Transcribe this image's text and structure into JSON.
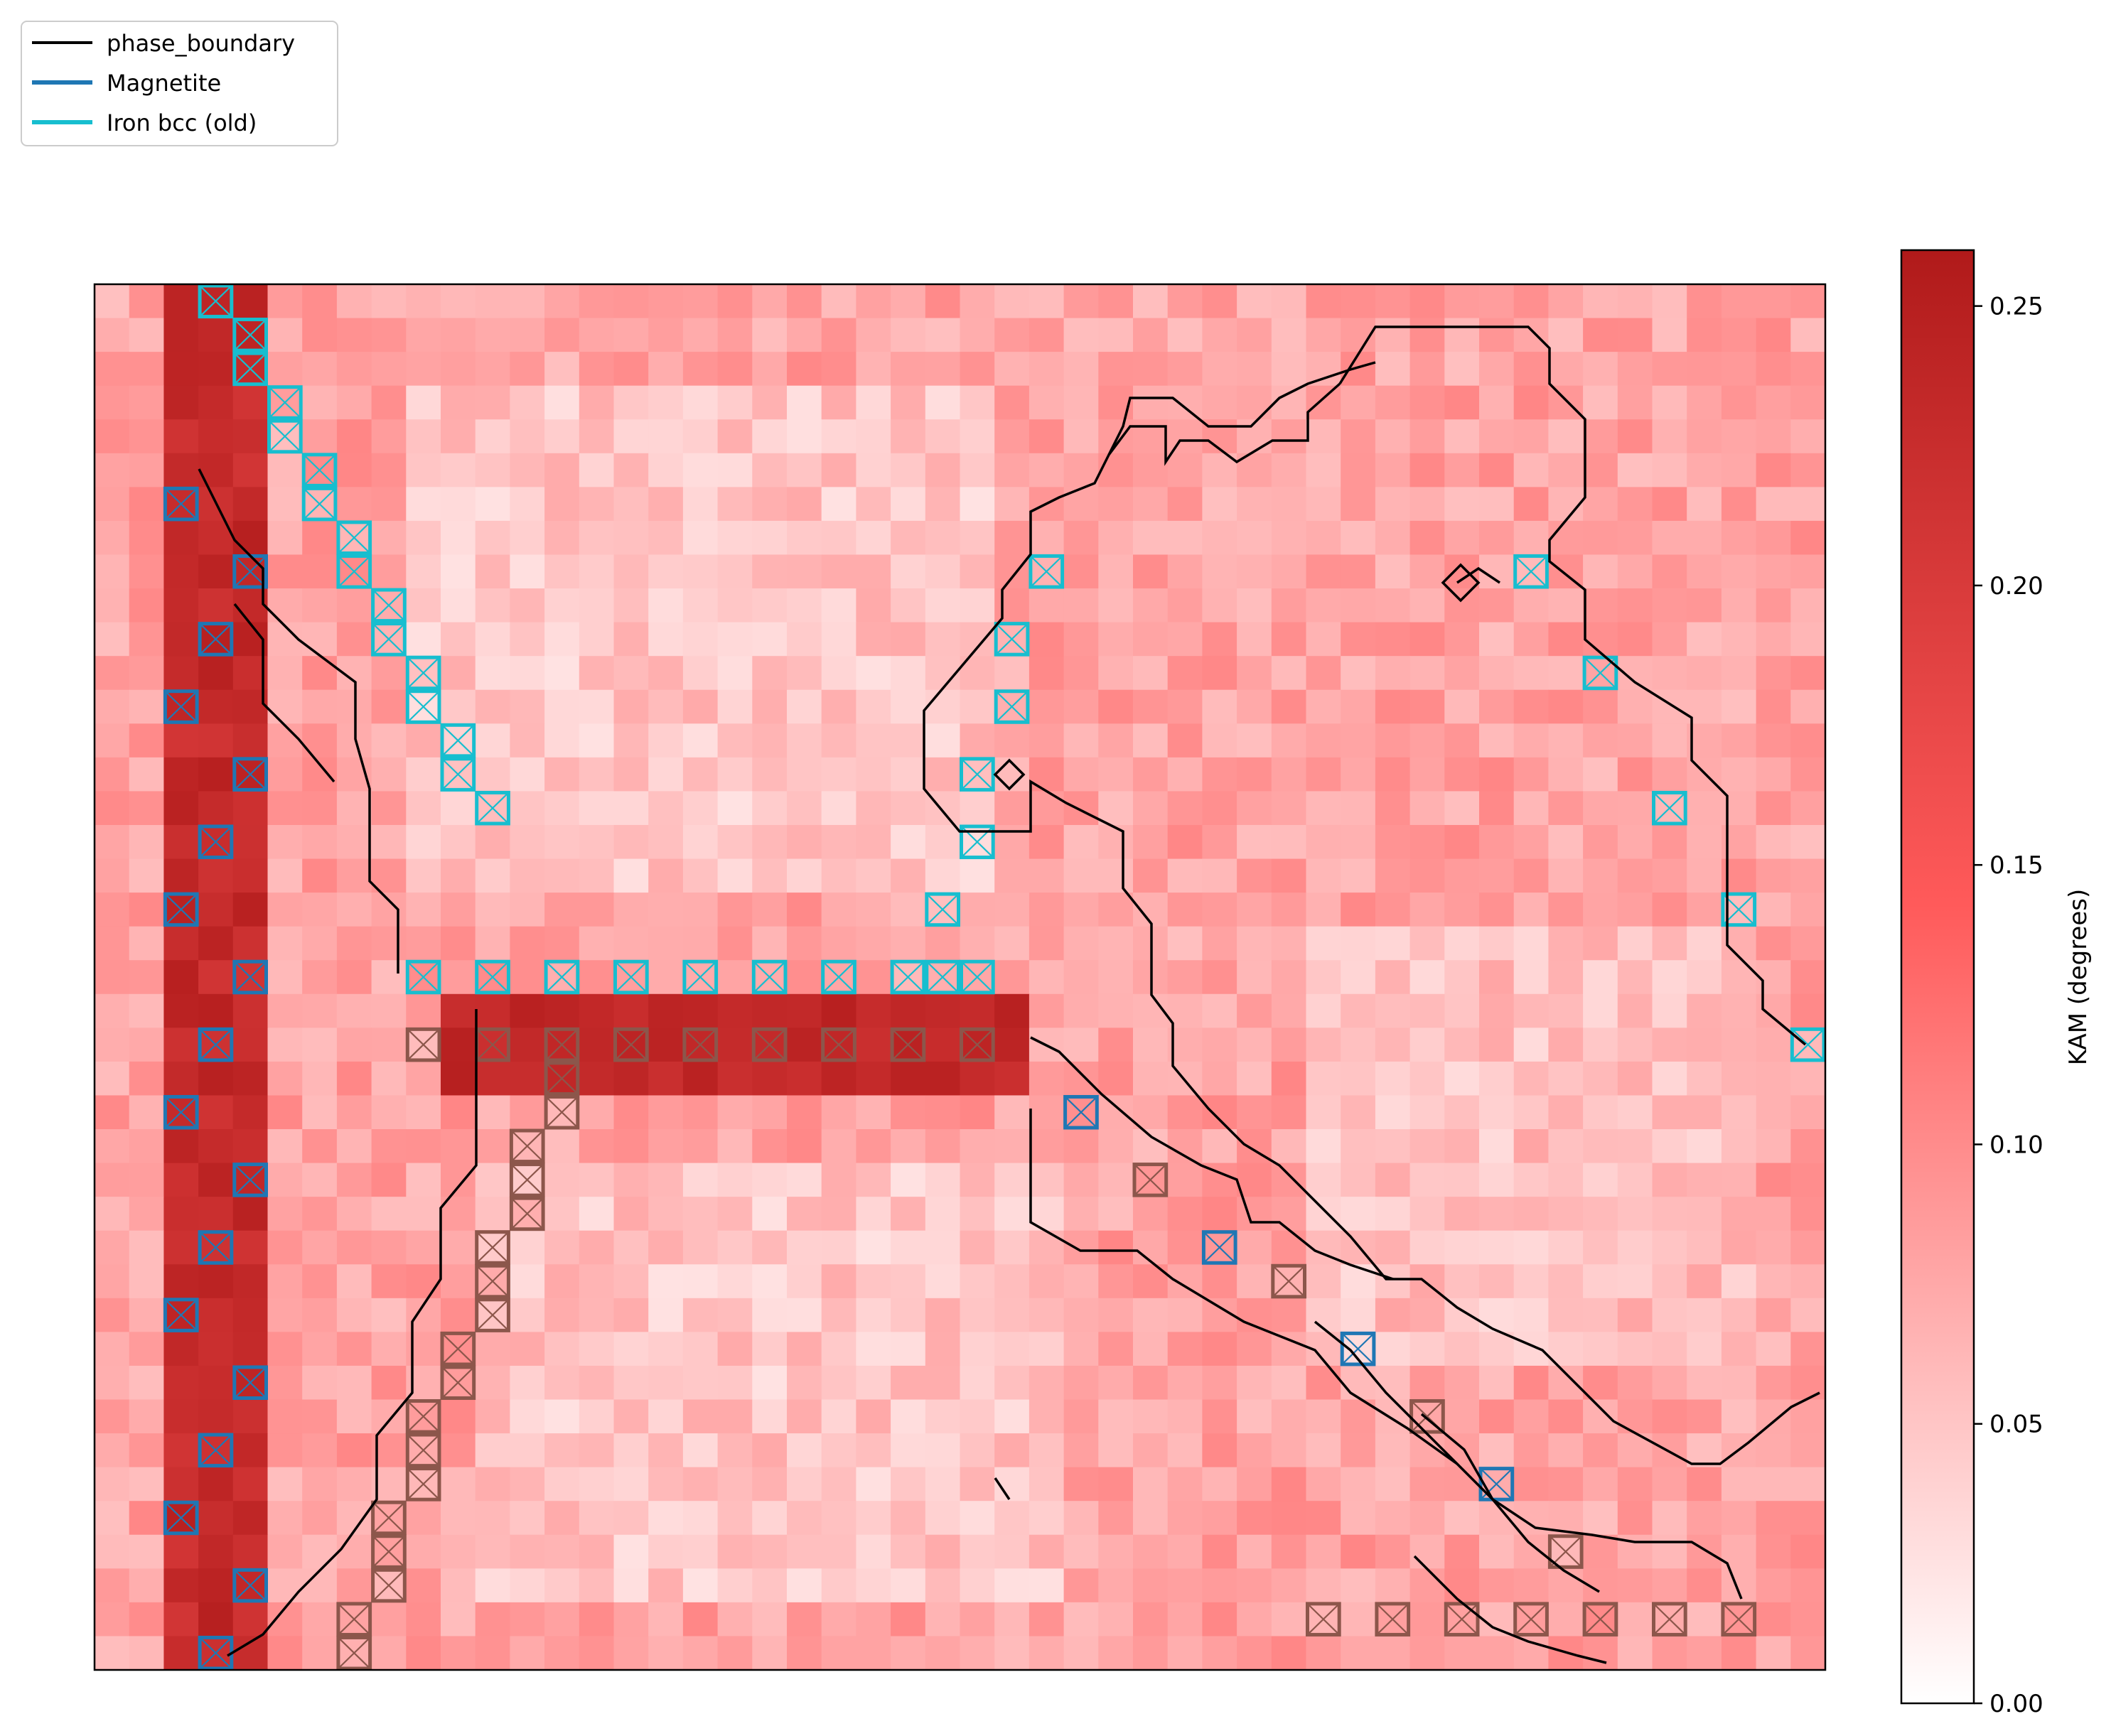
{
  "chart_data": {
    "type": "heatmap",
    "title": "",
    "xlabel": "",
    "ylabel": "",
    "grid": false,
    "axes_ticks_visible": false,
    "legend": {
      "placement": "top-left (outside plot)",
      "entries": [
        {
          "label": "phase_boundary",
          "color": "#000000"
        },
        {
          "label": "Magnetite",
          "color": "#1f77b4"
        },
        {
          "label": "Iron bcc (old)",
          "color": "#17becf"
        }
      ]
    },
    "extra_overlay_color_unlabeled": "#8c564b",
    "colorbar": {
      "label": "KAM (degrees)",
      "range": [
        0.0,
        0.26
      ],
      "ticks": [
        0.0,
        0.05,
        0.1,
        0.15,
        0.2,
        0.25
      ],
      "tick_labels": [
        "0.00",
        "0.05",
        "0.10",
        "0.15",
        "0.20",
        "0.25"
      ],
      "colormap": [
        "#ffffff",
        "#ff5a5a",
        "#b01a1a"
      ]
    },
    "grid_shape": {
      "rows": 41,
      "cols": 50
    },
    "kam_pattern_description_values": {
      "background_typical": 0.08,
      "light_regions": 0.04,
      "dark_bands": 0.24
    }
  }
}
